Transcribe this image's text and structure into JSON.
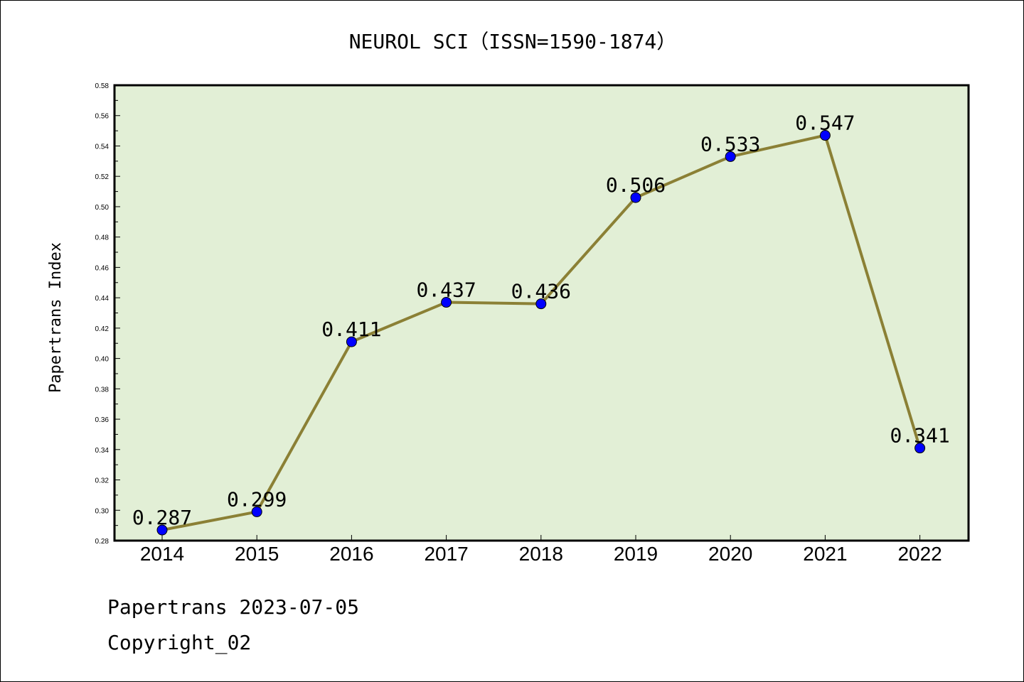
{
  "chart_data": {
    "type": "line",
    "title": "NEUROL SCI（ISSN=1590-1874）",
    "xlabel": "",
    "ylabel": "Papertrans Index",
    "categories": [
      "2014",
      "2015",
      "2016",
      "2017",
      "2018",
      "2019",
      "2020",
      "2021",
      "2022"
    ],
    "series": [
      {
        "values": [
          0.287,
          0.299,
          0.411,
          0.437,
          0.436,
          0.506,
          0.533,
          0.547,
          0.341
        ]
      }
    ],
    "data_labels": [
      "0.287",
      "0.299",
      "0.411",
      "0.437",
      "0.436",
      "0.506",
      "0.533",
      "0.547",
      "0.341"
    ],
    "ylim": [
      0.28,
      0.58
    ],
    "yticks": [
      "0.28",
      "0.30",
      "0.32",
      "0.34",
      "0.36",
      "0.38",
      "0.40",
      "0.42",
      "0.44",
      "0.46",
      "0.48",
      "0.50",
      "0.52",
      "0.54",
      "0.56",
      "0.58"
    ],
    "grid": false,
    "colors": {
      "plot_bg": "#e2efd6",
      "line": "#8b8035",
      "marker": "#0000ff"
    }
  },
  "footer": {
    "line1": "Papertrans 2023-07-05",
    "line2": "Copyright_02"
  }
}
